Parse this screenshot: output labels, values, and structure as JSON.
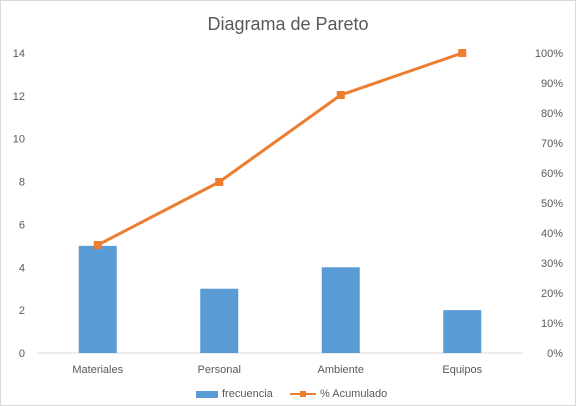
{
  "chart_data": {
    "type": "bar",
    "title": "Diagrama de Pareto",
    "categories": [
      "Materiales",
      "Personal",
      "Ambiente",
      "Equipos"
    ],
    "series": [
      {
        "name": "frecuencia",
        "kind": "bar",
        "axis": "left",
        "color": "#5b9bd5",
        "values": [
          5,
          3,
          4,
          2
        ]
      },
      {
        "name": "% Acumulado",
        "kind": "line",
        "axis": "right",
        "color": "#ed7d31",
        "values": [
          0.36,
          0.57,
          0.86,
          1.0
        ]
      }
    ],
    "y_left": {
      "ylim": [
        0,
        14
      ],
      "ticks": [
        "0",
        "2",
        "4",
        "6",
        "8",
        "10",
        "12",
        "14"
      ]
    },
    "y_right": {
      "ylim": [
        0,
        1
      ],
      "ticks": [
        "0%",
        "10%",
        "20%",
        "30%",
        "40%",
        "50%",
        "60%",
        "70%",
        "80%",
        "90%",
        "100%"
      ]
    },
    "grid": false,
    "legend_position": "bottom"
  }
}
